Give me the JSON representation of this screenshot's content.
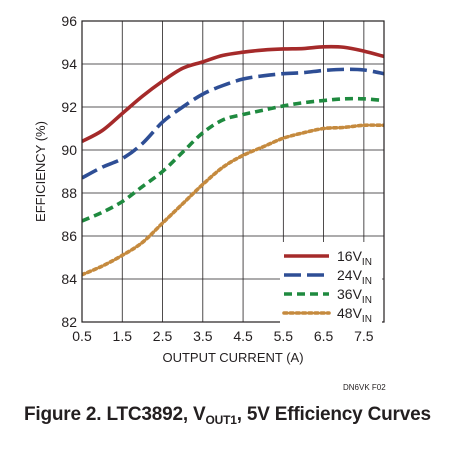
{
  "chart_data": {
    "type": "line",
    "xlabel": "OUTPUT CURRENT (A)",
    "ylabel": "EFFICIENCY (%)",
    "xlim": [
      0.5,
      8
    ],
    "ylim": [
      82,
      96
    ],
    "x_ticks": [
      "0.5",
      "1.5",
      "2.5",
      "3.5",
      "4.5",
      "5.5",
      "6.5",
      "7.5"
    ],
    "y_ticks": [
      "82",
      "84",
      "86",
      "88",
      "90",
      "92",
      "94",
      "96"
    ],
    "grid": true,
    "legend_position": "bottom-right",
    "series": [
      {
        "name": "16V",
        "name_sub": "IN",
        "color": "#a52a2a",
        "dash": "solid",
        "x": [
          0.5,
          1.0,
          1.5,
          2.0,
          2.5,
          3.0,
          3.5,
          4.0,
          4.5,
          5.0,
          5.5,
          6.0,
          6.5,
          7.0,
          7.5,
          8.0
        ],
        "y": [
          90.4,
          90.9,
          91.7,
          92.5,
          93.2,
          93.8,
          94.1,
          94.4,
          94.55,
          94.65,
          94.7,
          94.72,
          94.8,
          94.78,
          94.6,
          94.35
        ]
      },
      {
        "name": "24V",
        "name_sub": "IN",
        "color": "#2e4e95",
        "dash": "longdash",
        "x": [
          0.5,
          1.0,
          1.5,
          2.0,
          2.5,
          3.0,
          3.5,
          4.0,
          4.5,
          5.0,
          5.5,
          6.0,
          6.5,
          7.0,
          7.5,
          8.0
        ],
        "y": [
          88.7,
          89.2,
          89.6,
          90.3,
          91.3,
          92.0,
          92.6,
          93.0,
          93.3,
          93.45,
          93.55,
          93.6,
          93.7,
          93.75,
          93.72,
          93.55
        ]
      },
      {
        "name": "36V",
        "name_sub": "IN",
        "color": "#1f8a3f",
        "dash": "dash",
        "x": [
          0.5,
          1.0,
          1.5,
          2.0,
          2.5,
          3.0,
          3.5,
          4.0,
          4.5,
          5.0,
          5.5,
          6.0,
          6.5,
          7.0,
          7.5,
          8.0
        ],
        "y": [
          86.7,
          87.1,
          87.6,
          88.3,
          89.0,
          89.9,
          90.8,
          91.4,
          91.65,
          91.85,
          92.05,
          92.2,
          92.3,
          92.38,
          92.38,
          92.3
        ]
      },
      {
        "name": "48V",
        "name_sub": "IN",
        "color": "#c58a3e",
        "dash": "dot",
        "x": [
          0.5,
          1.0,
          1.5,
          2.0,
          2.5,
          3.0,
          3.5,
          4.0,
          4.5,
          5.0,
          5.5,
          6.0,
          6.5,
          7.0,
          7.5,
          8.0
        ],
        "y": [
          84.2,
          84.6,
          85.1,
          85.7,
          86.6,
          87.5,
          88.4,
          89.2,
          89.75,
          90.15,
          90.55,
          90.8,
          91.0,
          91.05,
          91.15,
          91.15
        ]
      }
    ]
  },
  "figure_code": "DN6VK F02",
  "caption": {
    "prefix": "Figure 2. LTC3892, V",
    "sub": "OUT1",
    "suffix": ", 5V Efficiency Curves"
  }
}
